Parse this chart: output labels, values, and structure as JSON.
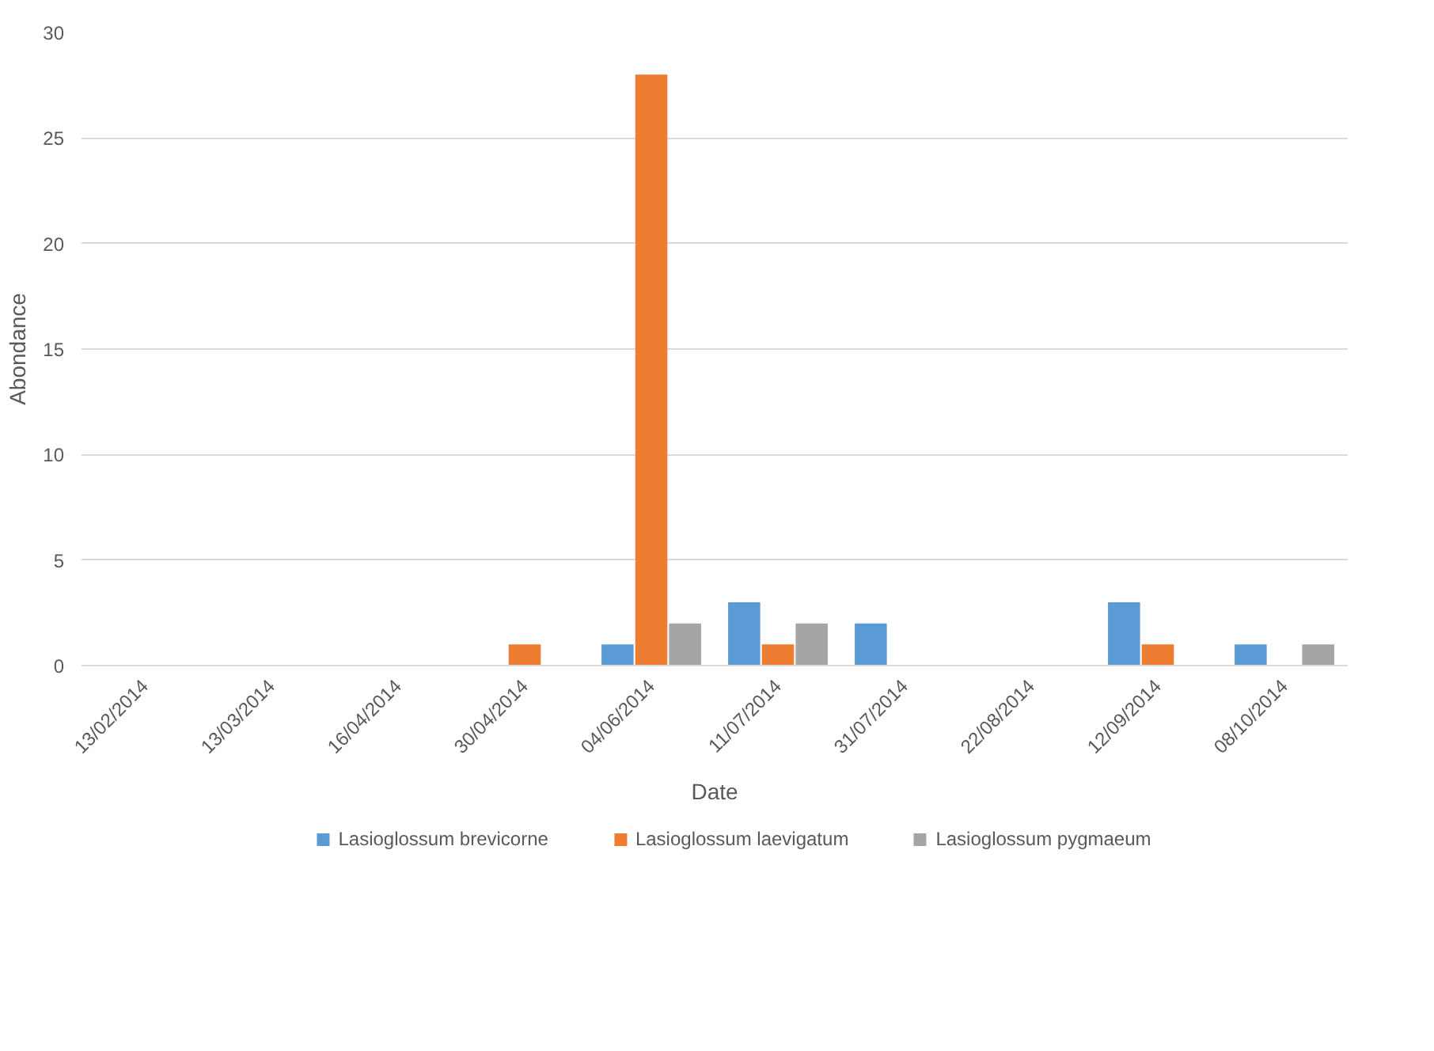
{
  "chart_data": {
    "type": "bar",
    "xlabel": "Date",
    "ylabel": "Abondance",
    "categories": [
      "13/02/2014",
      "13/03/2014",
      "16/04/2014",
      "30/04/2014",
      "04/06/2014",
      "11/07/2014",
      "31/07/2014",
      "22/08/2014",
      "12/09/2014",
      "08/10/2014"
    ],
    "series": [
      {
        "name": "Lasioglossum brevicorne",
        "color": "#5b9bd5",
        "values": [
          0,
          0,
          0,
          0,
          1,
          3,
          2,
          0,
          3,
          1
        ]
      },
      {
        "name": "Lasioglossum laevigatum",
        "color": "#ed7d31",
        "values": [
          0,
          0,
          0,
          1,
          28,
          1,
          0,
          0,
          1,
          0
        ]
      },
      {
        "name": "Lasioglossum pygmaeum",
        "color": "#a5a5a5",
        "values": [
          0,
          0,
          0,
          0,
          2,
          2,
          0,
          0,
          0,
          1
        ]
      }
    ],
    "ylim": [
      0,
      30
    ],
    "yticks": [
      0,
      5,
      10,
      15,
      20,
      25,
      30
    ],
    "grid": "y",
    "legend": "bottom"
  }
}
